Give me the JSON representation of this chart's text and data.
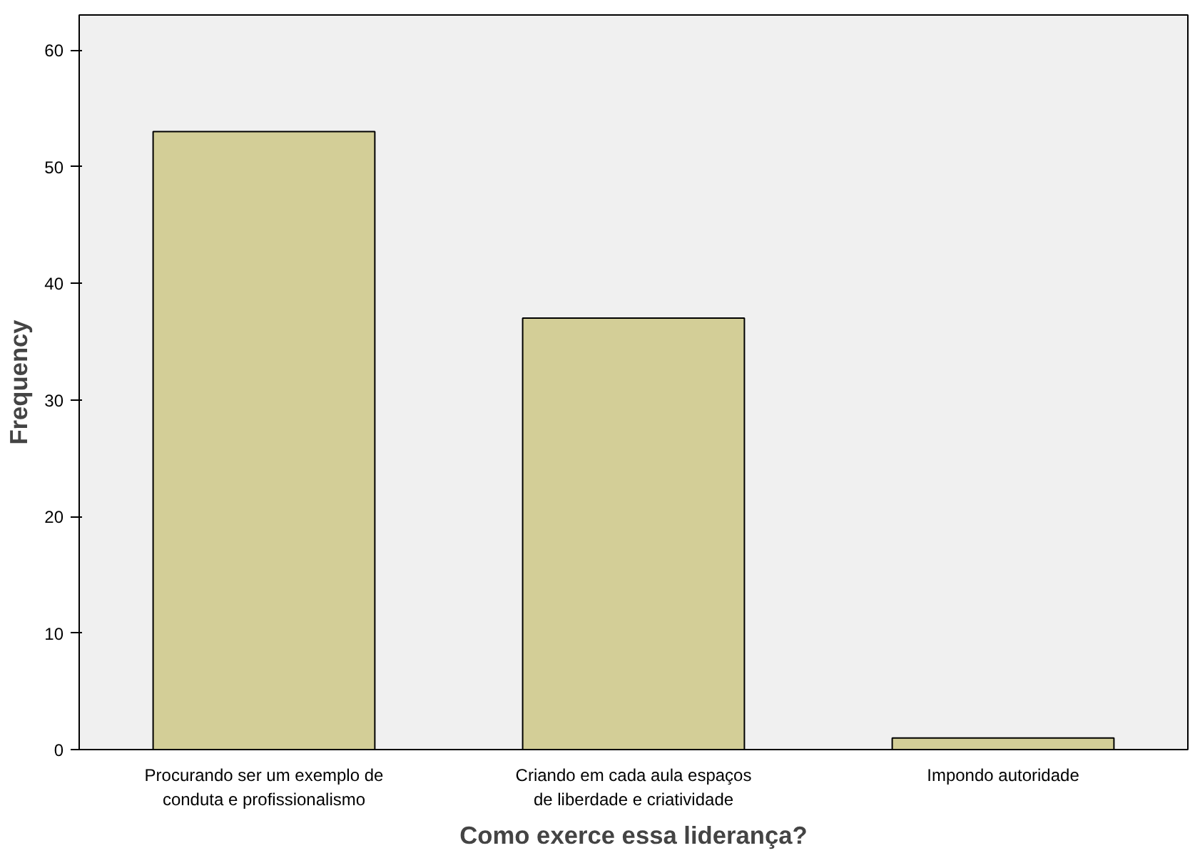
{
  "chart_data": {
    "type": "bar",
    "xlabel": "Como exerce essa liderança?",
    "ylabel": "Frequency",
    "categories": [
      "Procurando ser um exemplo de conduta e profissionalismo",
      "Criando em cada aula espaços de liberdade e criatividade",
      "Impondo autoridade"
    ],
    "values": [
      53,
      37,
      1
    ],
    "color": "#d3ce97",
    "ylim": [
      0,
      63
    ],
    "yticks": [
      0,
      10,
      20,
      30,
      40,
      50,
      60
    ],
    "grid": false
  }
}
